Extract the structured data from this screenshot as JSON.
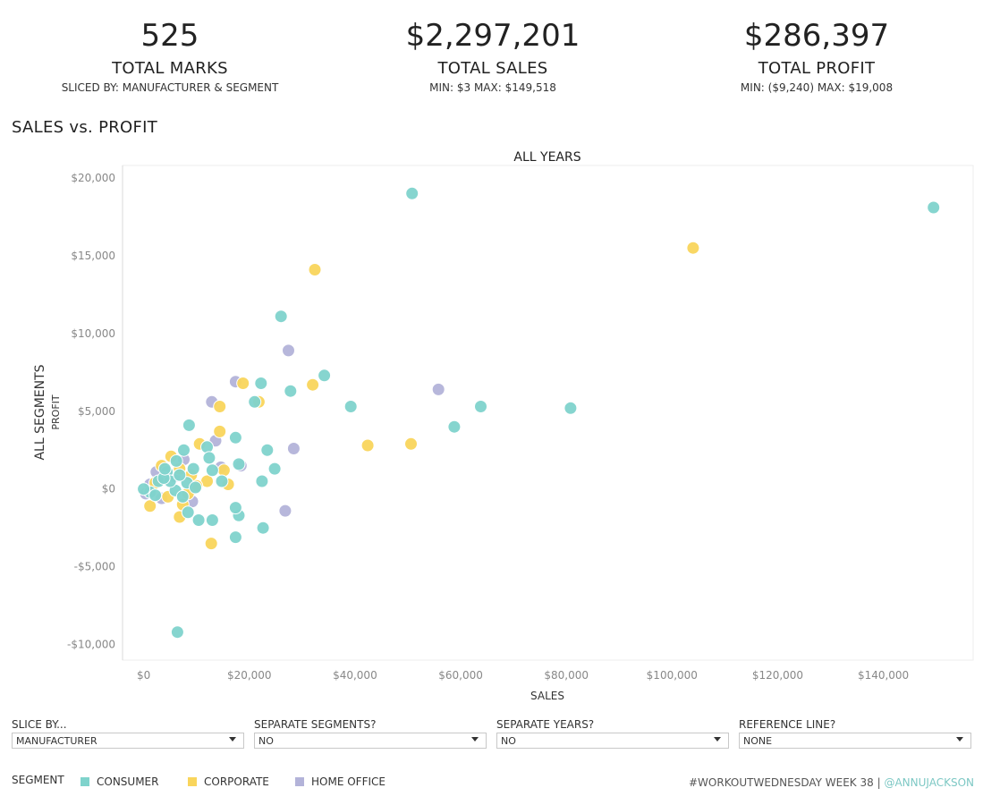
{
  "kpis": {
    "marks": {
      "value": "525",
      "label": "TOTAL MARKS",
      "sub": "SLICED BY: MANUFACTURER & SEGMENT"
    },
    "sales": {
      "value": "$2,297,201",
      "label": "TOTAL SALES",
      "sub": "MIN: $3 MAX: $149,518"
    },
    "profit": {
      "value": "$286,397",
      "label": "TOTAL PROFIT",
      "sub": "MIN: ($9,240) MAX: $19,008"
    }
  },
  "section_title": "SALES vs. PROFIT",
  "filters": [
    {
      "label": "SLICE BY...",
      "value": "MANUFACTURER"
    },
    {
      "label": "SEPARATE SEGMENTS?",
      "value": "NO"
    },
    {
      "label": "SEPARATE YEARS?",
      "value": "NO"
    },
    {
      "label": "REFERENCE LINE?",
      "value": "NONE"
    }
  ],
  "legend": {
    "title": "SEGMENT",
    "items": [
      {
        "label": "CONSUMER",
        "color": "#7fd3cc"
      },
      {
        "label": "CORPORATE",
        "color": "#f9d55c"
      },
      {
        "label": "HOME OFFICE",
        "color": "#b3b3d9"
      }
    ]
  },
  "footer": {
    "hashtag": "#WORKOUTWEDNESDAY WEEK 38 | ",
    "handle": "@ANNUJACKSON"
  },
  "chart_data": {
    "type": "scatter",
    "title": "ALL YEARS",
    "row_label": "ALL SEGMENTS",
    "xlabel": "SALES",
    "ylabel": "PROFIT",
    "xlim": [
      -4000,
      157000
    ],
    "ylim": [
      -11000,
      20800
    ],
    "x_ticks": [
      0,
      20000,
      40000,
      60000,
      80000,
      100000,
      120000,
      140000
    ],
    "x_tick_labels": [
      "$0",
      "$20,000",
      "$40,000",
      "$60,000",
      "$80,000",
      "$100,000",
      "$120,000",
      "$140,000"
    ],
    "y_ticks": [
      -10000,
      -5000,
      0,
      5000,
      10000,
      15000,
      20000
    ],
    "y_tick_labels": [
      "-$10,000",
      "-$5,000",
      "$0",
      "$5,000",
      "$10,000",
      "$15,000",
      "$20,000"
    ],
    "grid": false,
    "series": [
      {
        "name": "HOME OFFICE",
        "color": "#b3b3d9",
        "points": [
          [
            27400,
            8900
          ],
          [
            55800,
            6400
          ],
          [
            28400,
            2600
          ],
          [
            26800,
            -1400
          ],
          [
            17400,
            6900
          ],
          [
            12900,
            5600
          ],
          [
            13600,
            3100
          ],
          [
            14600,
            1400
          ],
          [
            18400,
            1500
          ],
          [
            9200,
            -800
          ],
          [
            3400,
            -600
          ],
          [
            1200,
            300
          ],
          [
            5800,
            800
          ],
          [
            7600,
            1900
          ],
          [
            2400,
            1100
          ],
          [
            400,
            -300
          ]
        ]
      },
      {
        "name": "CORPORATE",
        "color": "#f9d55c",
        "points": [
          [
            104000,
            15500
          ],
          [
            32400,
            14100
          ],
          [
            32000,
            6700
          ],
          [
            42400,
            2800
          ],
          [
            50600,
            2900
          ],
          [
            18800,
            6800
          ],
          [
            21800,
            5600
          ],
          [
            14400,
            5300
          ],
          [
            14400,
            3700
          ],
          [
            10600,
            2900
          ],
          [
            5200,
            2100
          ],
          [
            6800,
            1300
          ],
          [
            15200,
            1200
          ],
          [
            16000,
            300
          ],
          [
            12000,
            500
          ],
          [
            10000,
            200
          ],
          [
            8400,
            -300
          ],
          [
            7400,
            -1000
          ],
          [
            6800,
            -1800
          ],
          [
            1200,
            -1100
          ],
          [
            12800,
            -3500
          ],
          [
            3400,
            1500
          ],
          [
            2200,
            400
          ],
          [
            9000,
            900
          ],
          [
            4600,
            -500
          ]
        ]
      },
      {
        "name": "CONSUMER",
        "color": "#7fd3cc",
        "points": [
          [
            149500,
            18100
          ],
          [
            50800,
            19000
          ],
          [
            26000,
            11100
          ],
          [
            34200,
            7300
          ],
          [
            22200,
            6800
          ],
          [
            27800,
            6300
          ],
          [
            21000,
            5600
          ],
          [
            39200,
            5300
          ],
          [
            63800,
            5300
          ],
          [
            80800,
            5200
          ],
          [
            58800,
            4000
          ],
          [
            8600,
            4100
          ],
          [
            17400,
            3300
          ],
          [
            23400,
            2500
          ],
          [
            12000,
            2700
          ],
          [
            7600,
            2500
          ],
          [
            6200,
            1800
          ],
          [
            12400,
            2000
          ],
          [
            18000,
            1600
          ],
          [
            24800,
            1300
          ],
          [
            13000,
            1200
          ],
          [
            22400,
            500
          ],
          [
            14800,
            500
          ],
          [
            8200,
            400
          ],
          [
            9800,
            100
          ],
          [
            4400,
            1100
          ],
          [
            2800,
            500
          ],
          [
            6000,
            -100
          ],
          [
            1200,
            -200
          ],
          [
            0,
            0
          ],
          [
            5000,
            500
          ],
          [
            7400,
            -500
          ],
          [
            2200,
            -400
          ],
          [
            8400,
            -1500
          ],
          [
            10400,
            -2000
          ],
          [
            13000,
            -2000
          ],
          [
            18000,
            -1700
          ],
          [
            17400,
            -1200
          ],
          [
            22600,
            -2500
          ],
          [
            17400,
            -3100
          ],
          [
            6400,
            -9200
          ],
          [
            3800,
            700
          ],
          [
            6800,
            900
          ],
          [
            9400,
            1300
          ],
          [
            4000,
            1300
          ]
        ]
      }
    ]
  }
}
